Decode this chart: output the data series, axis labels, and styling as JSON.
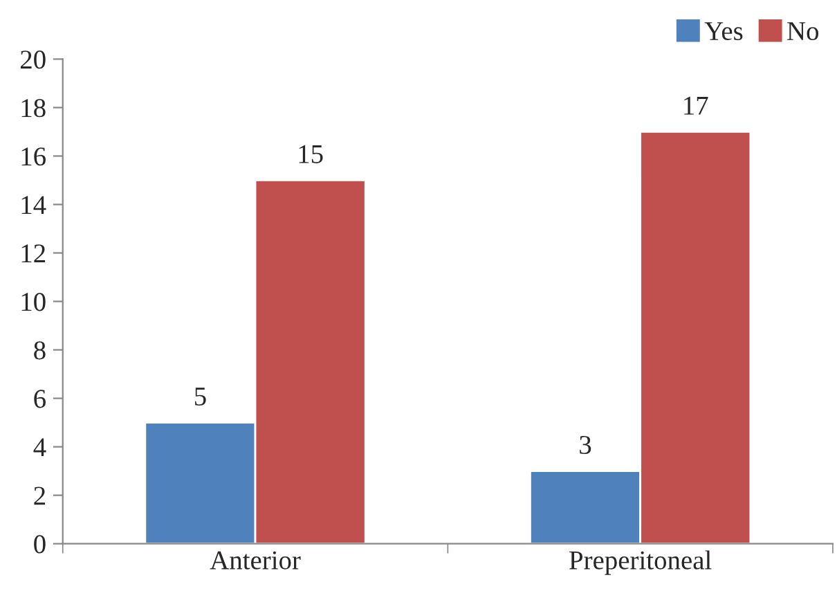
{
  "chart_data": {
    "type": "bar",
    "categories": [
      "Anterior",
      "Preperitoneal"
    ],
    "series": [
      {
        "name": "Yes",
        "color": "#4f81bd",
        "values": [
          5,
          3
        ]
      },
      {
        "name": "No",
        "color": "#c0504d",
        "values": [
          15,
          17
        ]
      }
    ],
    "ylim": [
      0,
      20
    ],
    "yticks": [
      0,
      2,
      4,
      6,
      8,
      10,
      12,
      14,
      16,
      18,
      20
    ],
    "data_labels": true,
    "grid": false,
    "legend": "top right"
  }
}
